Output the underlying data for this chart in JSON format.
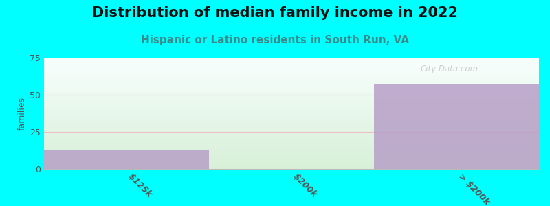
{
  "title": "Distribution of median family income in 2022",
  "subtitle": "Hispanic or Latino residents in South Run, VA",
  "categories": [
    "$125k",
    "$200k",
    "> $200k"
  ],
  "values": [
    13,
    0,
    57
  ],
  "bar_color": "#b89fc8",
  "bar_alpha": 0.85,
  "bg_color": "#00ffff",
  "plot_bg_top": "#f8fffe",
  "plot_bg_bottom": "#d8f0d8",
  "ylabel": "families",
  "ylim": [
    0,
    75
  ],
  "yticks": [
    0,
    25,
    50,
    75
  ],
  "grid_color": "#f0c0c0",
  "watermark": "City-Data.com",
  "title_fontsize": 15,
  "subtitle_fontsize": 11,
  "subtitle_color": "#3a8a8a",
  "tick_label_color": "#555555",
  "tick_label_fontsize": 9
}
